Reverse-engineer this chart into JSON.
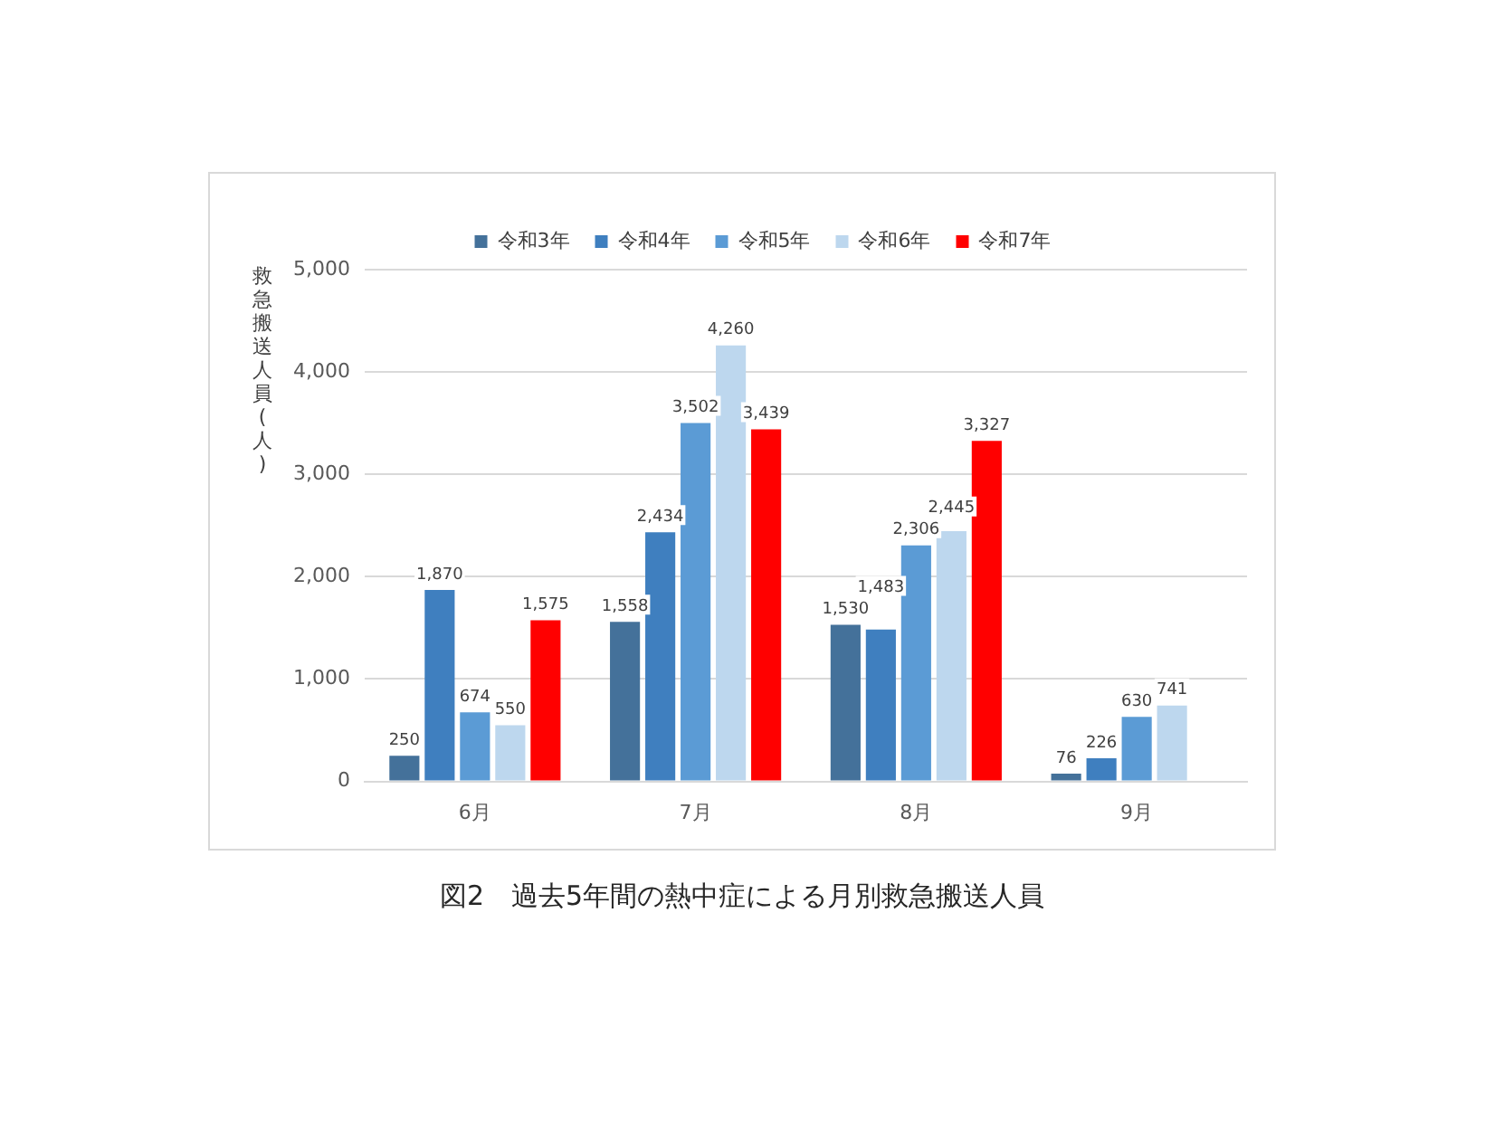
{
  "chart_data": {
    "type": "bar",
    "title": "図2　過去5年間の熱中症による月別救急搬送人員",
    "ylabel": "救急搬送人員(人)",
    "categories": [
      "6月",
      "7月",
      "8月",
      "9月"
    ],
    "series": [
      {
        "name": "令和3年",
        "color": "#44719a",
        "values": [
          250,
          1558,
          1530,
          76
        ],
        "value_labels": [
          "250",
          "1,558",
          "1,530",
          "76"
        ]
      },
      {
        "name": "令和4年",
        "color": "#3f7fbf",
        "values": [
          1870,
          2434,
          1483,
          226
        ],
        "value_labels": [
          "1,870",
          "2,434",
          "1,483",
          "226"
        ]
      },
      {
        "name": "令和5年",
        "color": "#5b9bd5",
        "values": [
          674,
          3502,
          2306,
          630
        ],
        "value_labels": [
          "674",
          "3,502",
          "2,306",
          "630"
        ]
      },
      {
        "name": "令和6年",
        "color": "#bdd7ee",
        "values": [
          550,
          4260,
          2445,
          741
        ],
        "value_labels": [
          "550",
          "4,260",
          "2,445",
          "741"
        ]
      },
      {
        "name": "令和7年",
        "color": "#ff0000",
        "values": [
          1575,
          3439,
          3327,
          null
        ],
        "value_labels": [
          "1,575",
          "3,439",
          "3,327",
          null
        ]
      }
    ],
    "ylim": [
      0,
      5000
    ],
    "yticks": [
      0,
      {
        "value": 1000,
        "label": "1,000"
      },
      {
        "value": 2000,
        "label": "2,000"
      },
      {
        "value": 3000,
        "label": "3,000"
      },
      {
        "value": 4000,
        "label": "4,000"
      },
      {
        "value": 5000,
        "label": "5,000"
      }
    ],
    "grid": "y",
    "legend": "top"
  }
}
